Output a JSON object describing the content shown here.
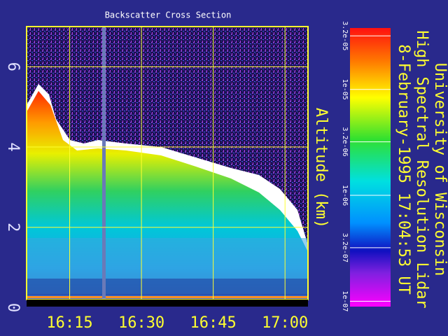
{
  "chart_data": {
    "type": "heatmap",
    "title": "Backscatter Cross Section",
    "ylabel": "Altitude (km)",
    "ylim": [
      0.2,
      7.0
    ],
    "yticks": [
      0,
      2,
      4,
      6
    ],
    "xlim": [
      16.1,
      17.08
    ],
    "xticks": [
      {
        "value": 16.25,
        "label": "16:15"
      },
      {
        "value": 16.5,
        "label": "16:30"
      },
      {
        "value": 16.75,
        "label": "16:45"
      },
      {
        "value": 17.0,
        "label": "17:00"
      }
    ],
    "grid": true,
    "colorbar": {
      "log": true,
      "lim": [
        8.9e-08,
        3.8e-05
      ],
      "ticks": [
        {
          "value": 3.2e-05,
          "label": "3.2e-05"
        },
        {
          "value": 1e-05,
          "label": "1e-05"
        },
        {
          "value": 3.2e-06,
          "label": "3.2e-06"
        },
        {
          "value": 1e-06,
          "label": "1e-06"
        },
        {
          "value": 3.2e-07,
          "label": "3.2e-07"
        },
        {
          "value": 1e-07,
          "label": "1e-07"
        }
      ]
    },
    "side_text": [
      "University of Wisconsin",
      "High Spectral Resolution Lidar",
      "8-February-1995 17:04:53 UT"
    ]
  }
}
